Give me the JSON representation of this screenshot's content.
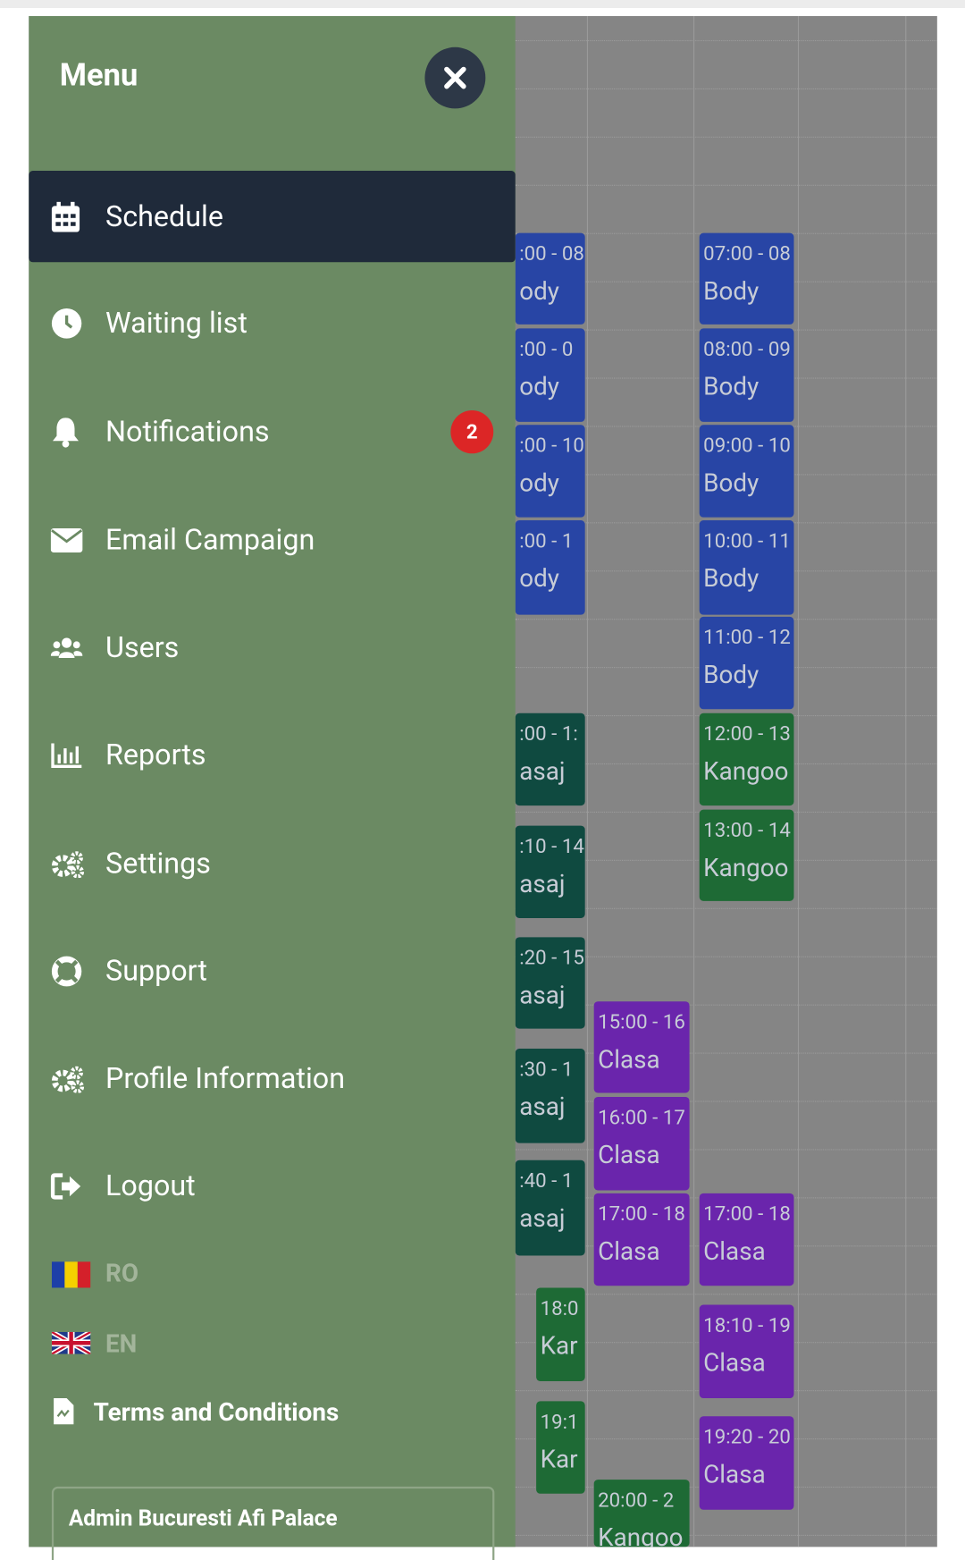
{
  "menu": {
    "title": "Menu",
    "items": [
      {
        "label": "Schedule"
      },
      {
        "label": "Waiting list"
      },
      {
        "label": "Notifications",
        "badge": "2"
      },
      {
        "label": "Email Campaign"
      },
      {
        "label": "Users"
      },
      {
        "label": "Reports"
      },
      {
        "label": "Settings"
      },
      {
        "label": "Support"
      },
      {
        "label": "Profile Information"
      },
      {
        "label": "Logout"
      }
    ],
    "languages": [
      "RO",
      "EN"
    ],
    "terms": "Terms and Conditions",
    "account": "Admin Bucuresti Afi Palace"
  },
  "schedule": {
    "events": [
      {
        "time": ":00 - 08",
        "title": "ody"
      },
      {
        "time": ":00 - 0",
        "title": "ody"
      },
      {
        "time": ":00 - 10",
        "title": "ody"
      },
      {
        "time": ":00 - 1",
        "title": "ody"
      },
      {
        "time": ":00 - 1:",
        "title": "asaj"
      },
      {
        "time": ":10 - 14",
        "title": "asaj"
      },
      {
        "time": ":20 - 15",
        "title": "asaj"
      },
      {
        "time": ":30 - 1",
        "title": "asaj"
      },
      {
        "time": ":40 - 1",
        "title": "asaj"
      },
      {
        "time": "18:0",
        "title": "Kar"
      },
      {
        "time": "19:1",
        "title": "Kar"
      },
      {
        "time": "15:00 - 16",
        "title": "Clasa"
      },
      {
        "time": "16:00 - 17",
        "title": "Clasa"
      },
      {
        "time": "17:00 - 18",
        "title": "Clasa"
      },
      {
        "time": "20:00 - 2",
        "title": "Kangoo"
      },
      {
        "time": "07:00 - 08",
        "title": "Body"
      },
      {
        "time": "08:00 - 09",
        "title": "Body"
      },
      {
        "time": "09:00 - 10",
        "title": "Body"
      },
      {
        "time": "10:00 - 11",
        "title": "Body"
      },
      {
        "time": "11:00 - 12",
        "title": "Body"
      },
      {
        "time": "12:00 - 13",
        "title": "Kangoo"
      },
      {
        "time": "13:00 - 14",
        "title": "Kangoo"
      },
      {
        "time": "17:00 - 18",
        "title": "Clasa"
      },
      {
        "time": "18:10 - 19",
        "title": "Clasa"
      },
      {
        "time": "19:20 - 20",
        "title": "Clasa"
      }
    ]
  }
}
